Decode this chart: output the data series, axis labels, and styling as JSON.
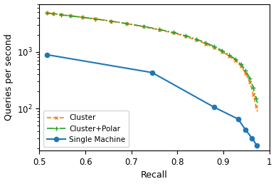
{
  "title": "",
  "xlabel": "Recall",
  "ylabel": "Queries per second",
  "single_machine_x": [
    0.516,
    0.745,
    0.88,
    0.932,
    0.948,
    0.962,
    0.973
  ],
  "single_machine_y": [
    890,
    430,
    105,
    65,
    42,
    30,
    22
  ],
  "cluster_x": [
    0.516,
    0.522,
    0.53,
    0.538,
    0.547,
    0.557,
    0.568,
    0.58,
    0.593,
    0.607,
    0.622,
    0.638,
    0.655,
    0.672,
    0.69,
    0.708,
    0.726,
    0.743,
    0.76,
    0.776,
    0.791,
    0.805,
    0.818,
    0.83,
    0.841,
    0.852,
    0.862,
    0.871,
    0.88,
    0.889,
    0.897,
    0.905,
    0.912,
    0.919,
    0.926,
    0.932,
    0.938,
    0.943,
    0.948,
    0.953,
    0.957,
    0.961,
    0.965,
    0.968,
    0.971,
    0.974
  ],
  "cluster_y": [
    4900,
    4820,
    4730,
    4640,
    4540,
    4440,
    4340,
    4230,
    4100,
    3970,
    3820,
    3660,
    3490,
    3320,
    3140,
    2960,
    2780,
    2610,
    2440,
    2290,
    2140,
    2000,
    1860,
    1730,
    1610,
    1490,
    1380,
    1280,
    1180,
    1090,
    1000,
    920,
    840,
    770,
    700,
    630,
    560,
    490,
    420,
    350,
    290,
    230,
    175,
    140,
    110,
    88
  ],
  "cluster_polar_x": [
    0.516,
    0.522,
    0.53,
    0.538,
    0.547,
    0.557,
    0.568,
    0.58,
    0.593,
    0.607,
    0.622,
    0.638,
    0.655,
    0.672,
    0.69,
    0.708,
    0.726,
    0.743,
    0.76,
    0.776,
    0.791,
    0.805,
    0.818,
    0.83,
    0.841,
    0.852,
    0.862,
    0.871,
    0.88,
    0.889,
    0.897,
    0.905,
    0.912,
    0.919,
    0.926,
    0.932,
    0.938,
    0.943,
    0.948,
    0.953,
    0.957,
    0.961,
    0.965,
    0.968,
    0.971,
    0.974
  ],
  "cluster_polar_y": [
    4850,
    4770,
    4680,
    4590,
    4490,
    4390,
    4290,
    4180,
    4060,
    3930,
    3790,
    3640,
    3480,
    3320,
    3150,
    2980,
    2810,
    2650,
    2490,
    2340,
    2200,
    2060,
    1920,
    1790,
    1670,
    1550,
    1440,
    1340,
    1240,
    1140,
    1050,
    965,
    885,
    810,
    740,
    670,
    600,
    535,
    465,
    400,
    340,
    285,
    230,
    185,
    150,
    125
  ],
  "single_color": "#1f77b4",
  "cluster_color": "#ff7f0e",
  "cluster_polar_color": "#2ca02c",
  "xlim": [
    0.5,
    1.0
  ],
  "ylim_log": [
    18,
    7000
  ],
  "yticks": [
    100,
    1000
  ],
  "ytick_labels": [
    "$10^2$",
    "$10^3$"
  ],
  "xticks": [
    0.5,
    0.6,
    0.7,
    0.8,
    0.9,
    1.0
  ],
  "xtick_labels": [
    "0.5",
    "0.6",
    "0.7",
    "0.8",
    "0.9",
    "1"
  ],
  "legend_loc": "lower left"
}
